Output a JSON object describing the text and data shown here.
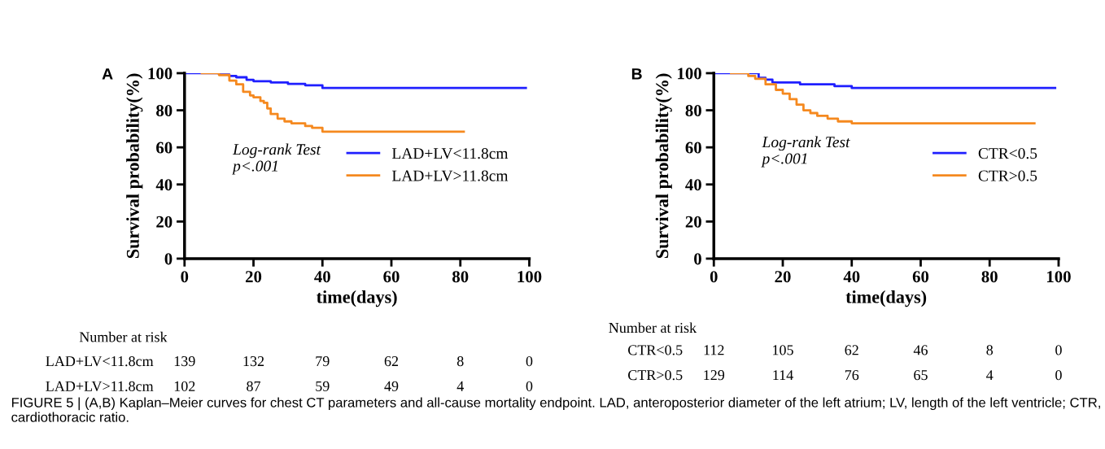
{
  "chart_data": [
    {
      "type": "step",
      "title": "A",
      "xlabel": "time(days)",
      "ylabel": "Survival probability(%)",
      "xlim": [
        0,
        100
      ],
      "ylim": [
        0,
        100
      ],
      "xticks": [
        0,
        20,
        40,
        60,
        80,
        100
      ],
      "yticks": [
        0,
        20,
        40,
        60,
        80,
        100
      ],
      "legend": "right",
      "grid": false,
      "series": [
        {
          "name": "LAD+LV<11.8cm",
          "color": "#1f1fff",
          "x": [
            0,
            10,
            13,
            15,
            18,
            20,
            25,
            30,
            35,
            40,
            99
          ],
          "values": [
            100,
            99.3,
            98.5,
            97.8,
            96.4,
            95.7,
            95,
            94.2,
            93.5,
            92,
            92
          ]
        },
        {
          "name": "LAD+LV>11.8cm",
          "color": "#f5891f",
          "x": [
            5,
            10,
            13,
            15,
            17,
            19,
            20,
            22,
            23,
            24,
            25,
            27,
            29,
            31,
            35,
            37,
            40,
            81
          ],
          "values": [
            100,
            99,
            96,
            94,
            90,
            88,
            87,
            85,
            84,
            81,
            78,
            75.5,
            74,
            73,
            71.5,
            70.5,
            68.5,
            68.5
          ]
        }
      ],
      "annotations": [
        "Log-rank Test\np<.001",
        "Number at risk",
        "LAD+LV<11.8cm 139 132 79 62 8 0",
        "LAD+LV>11.8cm 102 87 59 49 4 0",
        "FIGURE 5 | (A,B) Kaplan–Meier curves for chest CT parameters and all-cause mortality endpoint. LAD, anteroposterior diameter of the left atrium; LV, length of the left ventricle; CTR, cardiothoracic ratio."
      ]
    },
    {
      "type": "step",
      "title": "B",
      "xlabel": "time(days)",
      "ylabel": "Survival probability(%)",
      "xlim": [
        0,
        100
      ],
      "ylim": [
        0,
        100
      ],
      "xticks": [
        0,
        20,
        40,
        60,
        80,
        100
      ],
      "yticks": [
        0,
        20,
        40,
        60,
        80,
        100
      ],
      "legend": "right",
      "grid": false,
      "series": [
        {
          "name": "CTR<0.5",
          "color": "#1f1fff",
          "x": [
            0,
            13,
            15,
            17,
            25,
            35,
            40,
            99
          ],
          "values": [
            100,
            97.5,
            96.5,
            95,
            94,
            93,
            92,
            92
          ]
        },
        {
          "name": "CTR>0.5",
          "color": "#f5891f",
          "x": [
            5,
            10,
            12,
            15,
            18,
            20,
            22,
            24,
            26,
            28,
            30,
            33,
            36,
            40,
            93
          ],
          "values": [
            100,
            98.5,
            97,
            94,
            91,
            89,
            86,
            83,
            80,
            78.5,
            77,
            75.5,
            74,
            73,
            73
          ]
        }
      ],
      "annotations": [
        "Log-rank Test\np<.001",
        "Number at risk",
        "CTR<0.5 112 105 62 46 8 0",
        "CTR>0.5 129 114 76 65 4 0"
      ]
    }
  ]
}
